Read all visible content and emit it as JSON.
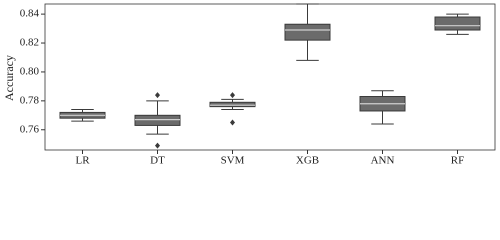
{
  "chart_data": {
    "type": "box",
    "y_label": "Accuracy",
    "categories": [
      "LR",
      "DT",
      "SVM",
      "XGB",
      "ANN",
      "RF"
    ],
    "color": "#6b6b6b",
    "line_color": "#3a3a3a",
    "median_color": "#cfcfcf",
    "boxes": [
      {
        "min": 0.766,
        "q1": 0.768,
        "median": 0.77,
        "q3": 0.772,
        "max": 0.774,
        "outliers": []
      },
      {
        "min": 0.757,
        "q1": 0.763,
        "median": 0.767,
        "q3": 0.77,
        "max": 0.78,
        "outliers": [
          0.784,
          0.749
        ]
      },
      {
        "min": 0.774,
        "q1": 0.776,
        "median": 0.777,
        "q3": 0.779,
        "max": 0.781,
        "outliers": [
          0.784,
          0.765
        ]
      },
      {
        "min": 0.808,
        "q1": 0.822,
        "median": 0.829,
        "q3": 0.833,
        "max": 0.847,
        "outliers": []
      },
      {
        "min": 0.764,
        "q1": 0.773,
        "median": 0.778,
        "q3": 0.783,
        "max": 0.787,
        "outliers": []
      },
      {
        "min": 0.826,
        "q1": 0.829,
        "median": 0.832,
        "q3": 0.838,
        "max": 0.84,
        "outliers": []
      }
    ],
    "ylim": [
      0.746,
      0.847
    ],
    "yticks": [
      0.76,
      0.78,
      {
        "value": 0.8,
        "label": "0.80"
      },
      0.82,
      0.84
    ]
  }
}
